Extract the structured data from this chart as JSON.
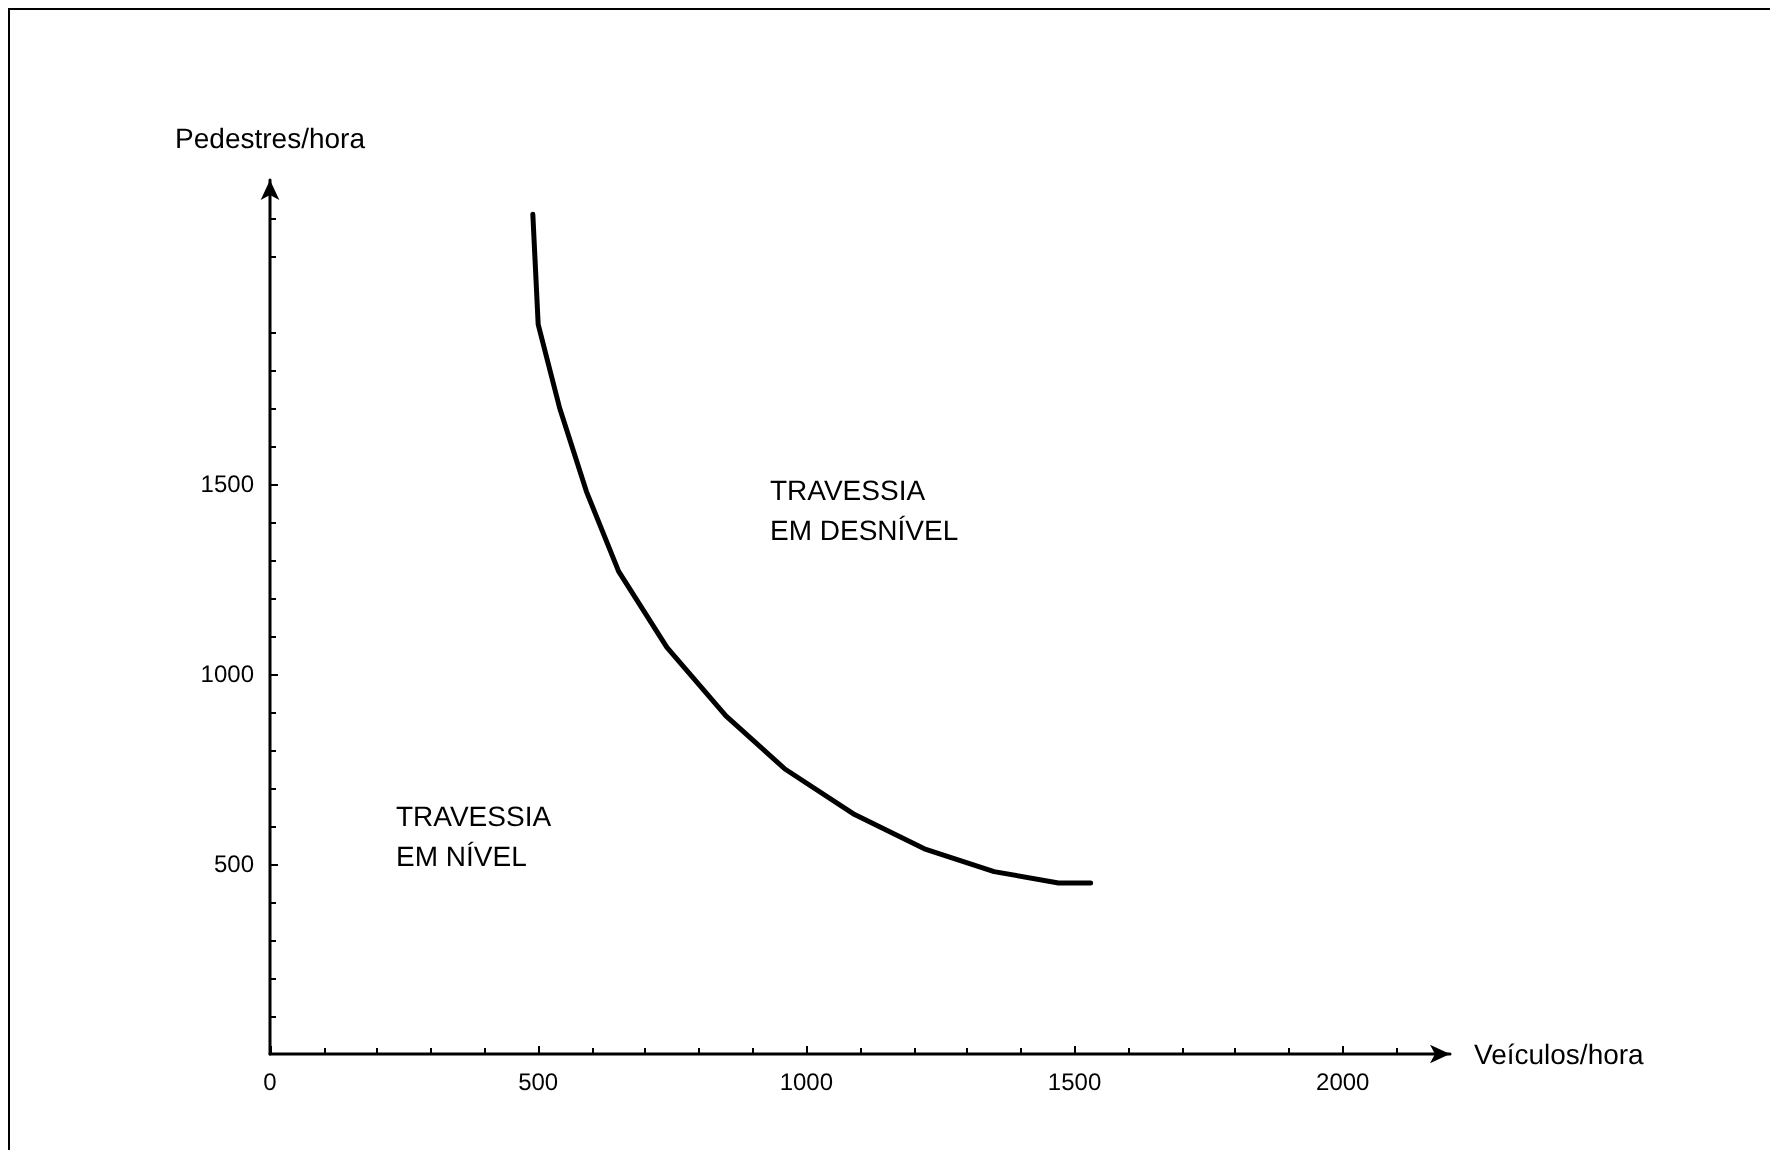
{
  "chart_data": {
    "type": "line",
    "xlabel": "Veículos/hora",
    "ylabel": "Pedestres/hora",
    "x": [
      490,
      500,
      540,
      590,
      650,
      740,
      850,
      960,
      1090,
      1220,
      1350,
      1470,
      1530
    ],
    "series": [
      {
        "color": "#000000",
        "values": [
          2210,
          1920,
          1700,
          1480,
          1270,
          1070,
          890,
          750,
          630,
          540,
          480,
          450,
          450
        ]
      }
    ],
    "xlim": [
      0,
      2200
    ],
    "ylim": [
      0,
      2300
    ],
    "xticks": [
      0,
      500,
      1000,
      1500,
      2000
    ],
    "yticks": [
      500,
      1000,
      1500
    ],
    "annotations": [
      "TRAVESSIA\nEM DESNÍVEL",
      "TRAVESSIA\nEM NÍVEL"
    ],
    "grid": false,
    "marker": "none",
    "line_style": "solid"
  }
}
